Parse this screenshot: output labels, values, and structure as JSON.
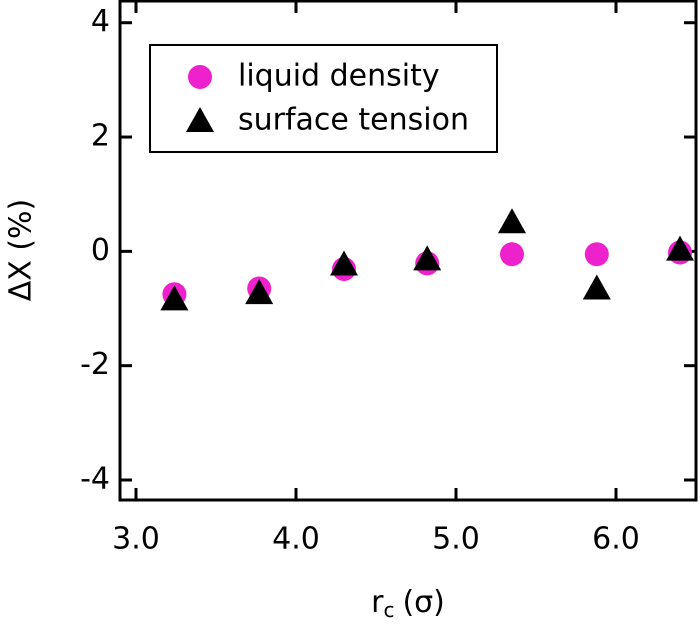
{
  "chart_data": {
    "type": "scatter",
    "x_label": {
      "symbol": "r",
      "subscript": "c",
      "unit": "(σ)"
    },
    "y_label": "ΔX (%)",
    "xlim": [
      2.9,
      6.5
    ],
    "ylim": [
      -4.35,
      4.38
    ],
    "xticks": [
      {
        "value": 3,
        "label": "3.0"
      },
      {
        "value": 4,
        "label": "4.0"
      },
      {
        "value": 5,
        "label": "5.0"
      },
      {
        "value": 6,
        "label": "6.0"
      }
    ],
    "yticks": [
      -4,
      -2,
      0,
      2,
      4
    ],
    "legend": "upper left",
    "series": [
      {
        "name": "liquid density",
        "color": "#ee22cc",
        "marker": "circle",
        "x": [
          3.24,
          3.77,
          4.3,
          4.82,
          5.35,
          5.88,
          6.4
        ],
        "values": [
          -0.75,
          -0.65,
          -0.31,
          -0.21,
          -0.05,
          -0.05,
          -0.02
        ]
      },
      {
        "name": "surface tension",
        "color": "#000000",
        "marker": "triangle",
        "x": [
          3.24,
          3.77,
          4.3,
          4.82,
          5.35,
          5.88,
          6.4
        ],
        "values": [
          -0.84,
          -0.73,
          -0.23,
          -0.14,
          0.51,
          -0.65,
          0.03
        ]
      }
    ]
  }
}
